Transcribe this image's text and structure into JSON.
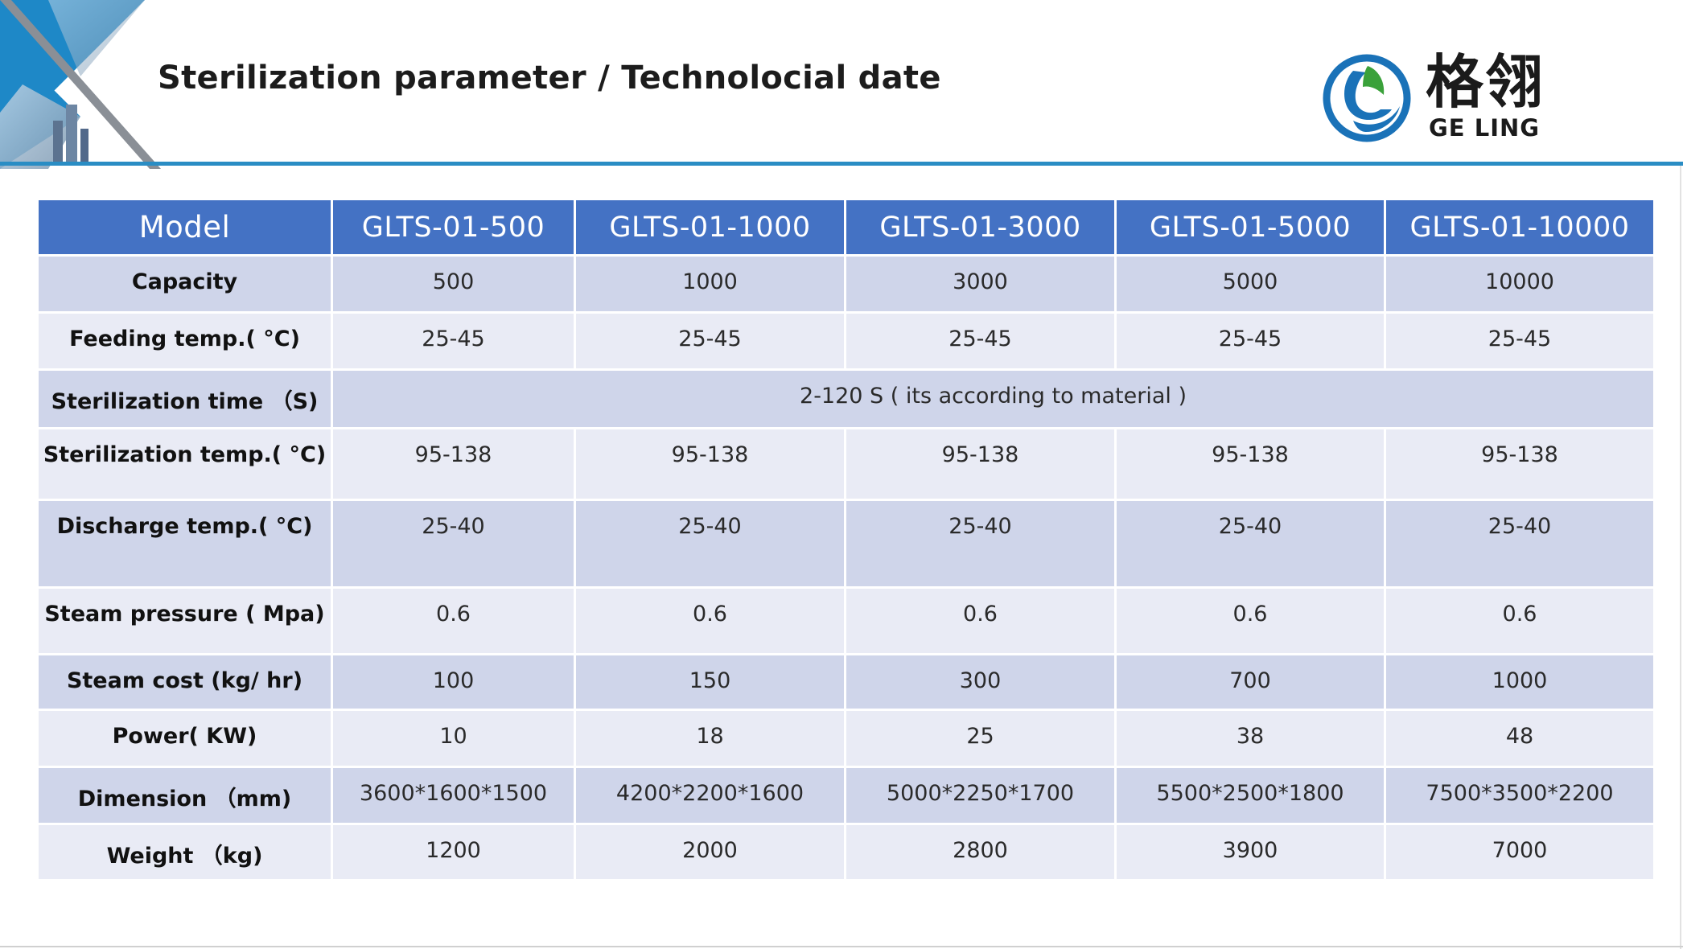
{
  "header": {
    "title": "Sterilization parameter / Technolocial  date"
  },
  "logo": {
    "chinese_name": "格翎",
    "english_name": "GE LING"
  },
  "table": {
    "headers": [
      "Model",
      "GLTS-01-500",
      "GLTS-01-1000",
      "GLTS-01-3000",
      "GLTS-01-5000",
      "GLTS-01-10000"
    ],
    "rows": [
      {
        "label": "Capacity",
        "values": [
          "500",
          "1000",
          "3000",
          "5000",
          "10000"
        ]
      },
      {
        "label": "Feeding temp.( °C)",
        "values": [
          "25-45",
          "25-45",
          "25-45",
          "25-45",
          "25-45"
        ]
      },
      {
        "label": "Sterilization time （S)",
        "merged_value": "2-120 S ( its according to material )"
      },
      {
        "label": "Sterilization temp.( °C)",
        "values": [
          "95-138",
          "95-138",
          "95-138",
          "95-138",
          "95-138"
        ]
      },
      {
        "label": "Discharge temp.( °C)",
        "values": [
          "25-40",
          "25-40",
          "25-40",
          "25-40",
          "25-40"
        ]
      },
      {
        "label": "Steam pressure ( Mpa)",
        "values": [
          "0.6",
          "0.6",
          "0.6",
          "0.6",
          "0.6"
        ]
      },
      {
        "label": "Steam cost (kg/ hr)",
        "values": [
          "100",
          "150",
          "300",
          "700",
          "1000"
        ]
      },
      {
        "label": "Power( KW)",
        "values": [
          "10",
          "18",
          "25",
          "38",
          "48"
        ]
      },
      {
        "label": "Dimension （mm)",
        "values": [
          "3600*1600*1500",
          "4200*2200*1600",
          "5000*2250*1700",
          "5500*2500*1800",
          "7500*3500*2200"
        ]
      },
      {
        "label": "Weight （kg)",
        "values": [
          "1200",
          "2000",
          "2800",
          "3900",
          "7000"
        ]
      }
    ]
  },
  "colors": {
    "header_blue": "#4472c4",
    "row_dark": "#cfd5ea",
    "row_light": "#e9ebf5",
    "accent_rule": "#2a8dc4",
    "logo_blue": "#1a72b8",
    "logo_green": "#3aa13a"
  }
}
